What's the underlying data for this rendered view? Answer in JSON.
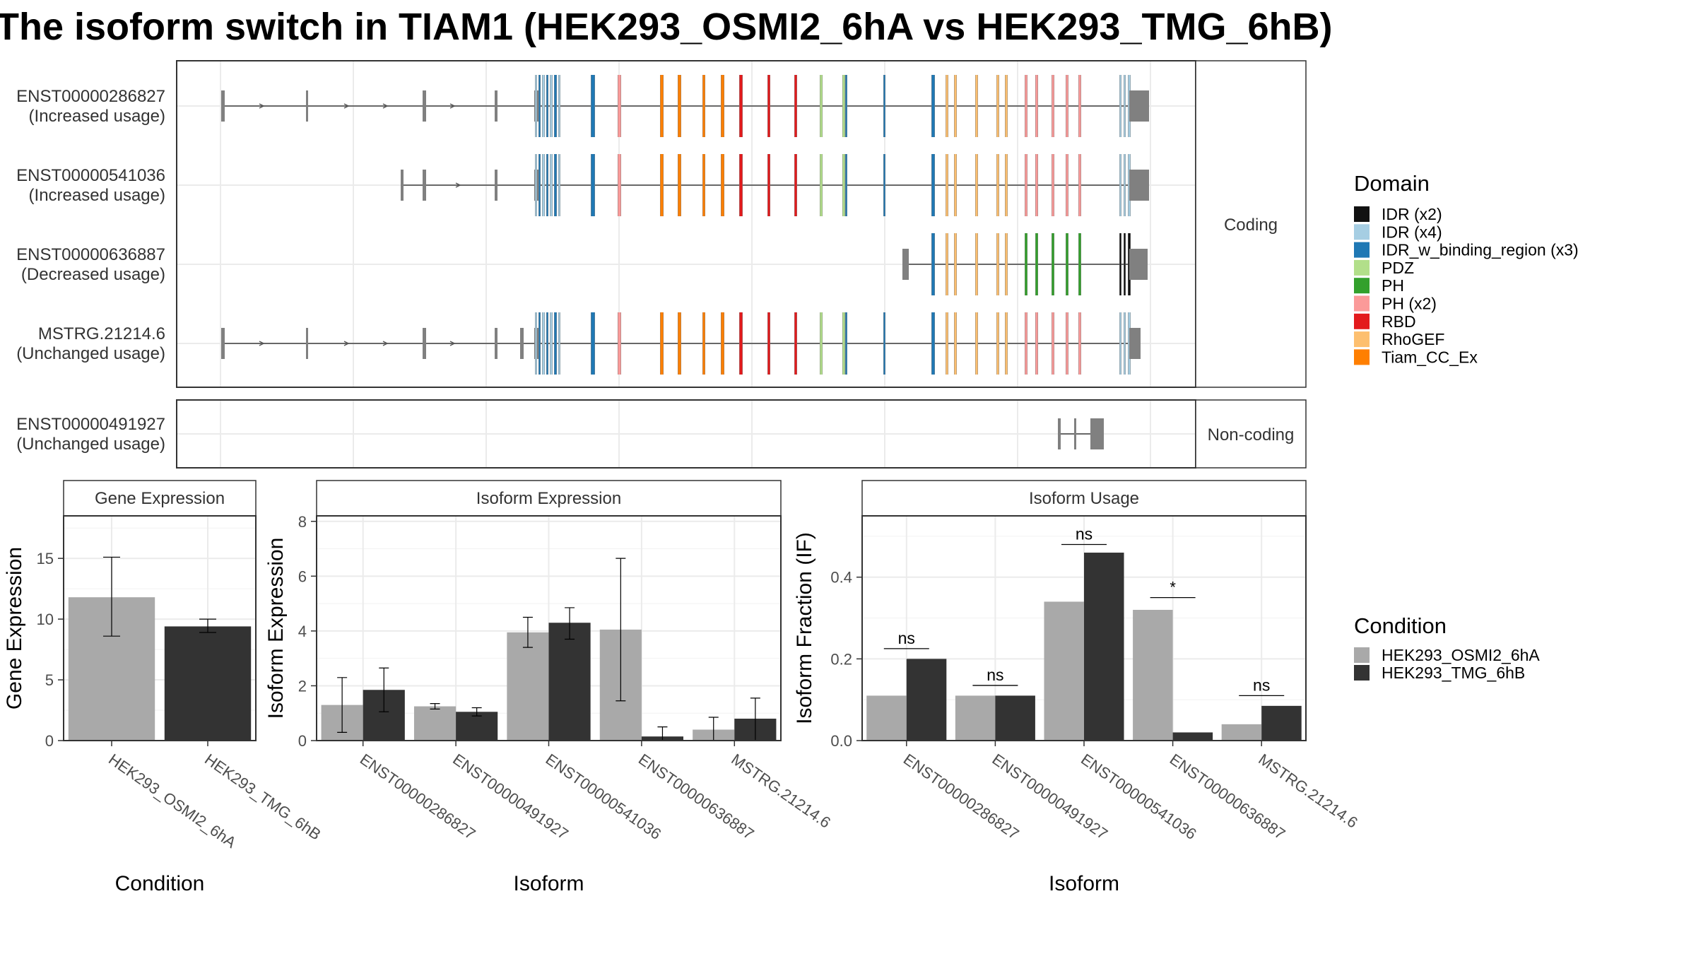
{
  "title": "The isoform switch in TIAM1 (HEK293_OSMI2_6hA vs HEK293_TMG_6hB)",
  "colors": {
    "condition_a": "#a9a9a9",
    "condition_b": "#333333",
    "exon": "#808080",
    "intron": "#555555",
    "IDR (x2)": "#111111",
    "IDR (x4)": "#a6cee3",
    "IDR_w_binding_region (x3)": "#1f78b4",
    "PDZ": "#b2df8a",
    "PH": "#33a02c",
    "PH (x2)": "#fb9a99",
    "RBD": "#e31a1c",
    "RhoGEF": "#fdbf6f",
    "Tiam_CC_Ex": "#ff7f00"
  },
  "domain_legend": {
    "title": "Domain",
    "items": [
      "IDR (x2)",
      "IDR (x4)",
      "IDR_w_binding_region (x3)",
      "PDZ",
      "PH",
      "PH (x2)",
      "RBD",
      "RhoGEF",
      "Tiam_CC_Ex"
    ]
  },
  "condition_legend": {
    "title": "Condition",
    "items": [
      "HEK293_OSMI2_6hA",
      "HEK293_TMG_6hB"
    ]
  },
  "structure": {
    "coding_strip": "Coding",
    "noncoding_strip": "Non-coding",
    "coding_transcripts": [
      {
        "id": "ENST00000286827",
        "usage": "(Increased usage)",
        "kind": "full"
      },
      {
        "id": "ENST00000541036",
        "usage": "(Increased usage)",
        "kind": "mid"
      },
      {
        "id": "ENST00000636887",
        "usage": "(Decreased usage)",
        "kind": "short"
      },
      {
        "id": "MSTRG.21214.6",
        "usage": "(Unchanged usage)",
        "kind": "full2"
      }
    ],
    "noncoding_transcripts": [
      {
        "id": "ENST00000491927",
        "usage": "(Unchanged usage)",
        "kind": "nc"
      }
    ]
  },
  "chart_data": [
    {
      "type": "bar",
      "title": "Gene Expression",
      "xlabel": "Condition",
      "ylabel": "Gene Expression",
      "ylim": [
        0,
        18.5
      ],
      "yticks": [
        0,
        5,
        10,
        15
      ],
      "categories": [
        "HEK293_OSMI2_6hA",
        "HEK293_TMG_6hB"
      ],
      "values": [
        11.8,
        9.4
      ],
      "errors": [
        [
          8.6,
          15.1
        ],
        [
          8.9,
          10.0
        ]
      ]
    },
    {
      "type": "bar",
      "title": "Isoform Expression",
      "xlabel": "Isoform",
      "ylabel": "Isoform Expression",
      "ylim": [
        0,
        8.2
      ],
      "yticks": [
        0,
        2,
        4,
        6,
        8
      ],
      "categories": [
        "ENST00000286827",
        "ENST00000491927",
        "ENST00000541036",
        "ENST00000636887",
        "MSTRG.21214.6"
      ],
      "series": [
        {
          "name": "HEK293_OSMI2_6hA",
          "values": [
            1.3,
            1.25,
            3.95,
            4.05,
            0.4
          ],
          "errors": [
            [
              0.3,
              2.3
            ],
            [
              1.15,
              1.35
            ],
            [
              3.4,
              4.5
            ],
            [
              1.45,
              6.65
            ],
            [
              0.0,
              0.85
            ]
          ]
        },
        {
          "name": "HEK293_TMG_6hB",
          "values": [
            1.85,
            1.05,
            4.3,
            0.15,
            0.8
          ],
          "errors": [
            [
              1.05,
              2.65
            ],
            [
              0.9,
              1.2
            ],
            [
              3.7,
              4.85
            ],
            [
              0.0,
              0.5
            ],
            [
              0.0,
              1.55
            ]
          ]
        }
      ]
    },
    {
      "type": "bar",
      "title": "Isoform Usage",
      "xlabel": "Isoform",
      "ylabel": "Isoform Fraction (IF)",
      "ylim": [
        0,
        0.55
      ],
      "yticks": [
        "0.0",
        "0.2",
        "0.4"
      ],
      "categories": [
        "ENST00000286827",
        "ENST00000491927",
        "ENST00000541036",
        "ENST00000636887",
        "MSTRG.21214.6"
      ],
      "series": [
        {
          "name": "HEK293_OSMI2_6hA",
          "values": [
            0.11,
            0.11,
            0.34,
            0.32,
            0.04
          ]
        },
        {
          "name": "HEK293_TMG_6hB",
          "values": [
            0.2,
            0.11,
            0.46,
            0.02,
            0.085
          ]
        }
      ],
      "annotations": [
        {
          "label": "ns",
          "y": 0.225
        },
        {
          "label": "ns",
          "y": 0.135
        },
        {
          "label": "ns",
          "y": 0.48
        },
        {
          "label": "*",
          "y": 0.35
        },
        {
          "label": "ns",
          "y": 0.11
        }
      ]
    }
  ]
}
